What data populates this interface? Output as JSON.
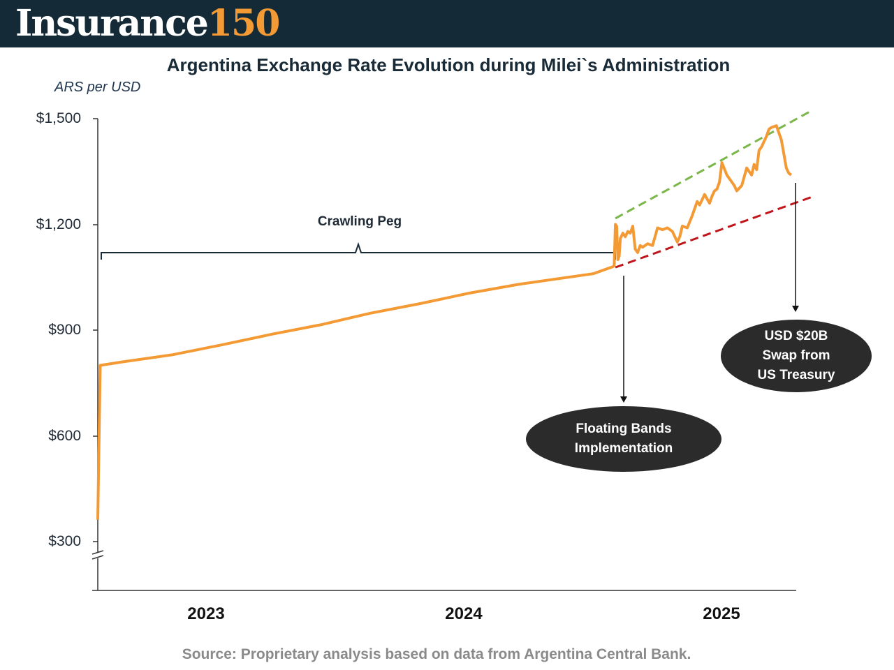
{
  "brand": {
    "word": "Insurance",
    "number": "150"
  },
  "chart_data": {
    "type": "line",
    "title": "Argentina Exchange Rate Evolution during Milei`s Administration",
    "ylabel": "ARS per USD",
    "xlabel": "",
    "ylim": [
      300,
      1500
    ],
    "y_ticks": [
      "$1,500",
      "$1,200",
      "$900",
      "$600",
      "$300"
    ],
    "y_tick_values": [
      1500,
      1200,
      900,
      600,
      300
    ],
    "x_ticks": [
      "2023",
      "2024",
      "2025"
    ],
    "x_range": [
      2022.95,
      2025.77
    ],
    "series": [
      {
        "name": "ARS per USD",
        "color": "#f39a35",
        "x": [
          2022.95,
          2022.96,
          2023.05,
          2023.25,
          2023.45,
          2023.65,
          2023.85,
          2024.05,
          2024.25,
          2024.45,
          2024.65,
          2024.95,
          2025.03,
          2025.035,
          2025.04,
          2025.045,
          2025.05,
          2025.055,
          2025.06,
          2025.07,
          2025.08,
          2025.09,
          2025.1,
          2025.11,
          2025.12,
          2025.13,
          2025.14,
          2025.15,
          2025.17,
          2025.19,
          2025.21,
          2025.23,
          2025.25,
          2025.27,
          2025.29,
          2025.3,
          2025.31,
          2025.33,
          2025.35,
          2025.37,
          2025.38,
          2025.4,
          2025.42,
          2025.43,
          2025.44,
          2025.45,
          2025.46,
          2025.47,
          2025.49,
          2025.51,
          2025.52,
          2025.53,
          2025.55,
          2025.57,
          2025.59,
          2025.6,
          2025.61,
          2025.62,
          2025.63,
          2025.65,
          2025.66,
          2025.67,
          2025.69,
          2025.71,
          2025.72,
          2025.73,
          2025.74,
          2025.75
        ],
        "values": [
          362,
          800,
          810,
          830,
          858,
          888,
          915,
          948,
          975,
          1005,
          1030,
          1060,
          1080,
          1083,
          1200,
          1195,
          1100,
          1110,
          1160,
          1175,
          1165,
          1180,
          1175,
          1195,
          1130,
          1120,
          1140,
          1135,
          1145,
          1140,
          1190,
          1185,
          1190,
          1180,
          1150,
          1165,
          1195,
          1190,
          1225,
          1265,
          1255,
          1285,
          1260,
          1280,
          1295,
          1300,
          1320,
          1375,
          1340,
          1320,
          1310,
          1295,
          1310,
          1360,
          1340,
          1370,
          1355,
          1410,
          1420,
          1450,
          1470,
          1475,
          1480,
          1440,
          1400,
          1360,
          1345,
          1340
        ]
      }
    ],
    "bands": [
      {
        "name": "upper band",
        "color": "#7ab648",
        "x": [
          2025.04,
          2025.83
        ],
        "values": [
          1217,
          1522
        ]
      },
      {
        "name": "lower band",
        "color": "#c0161b",
        "x": [
          2025.04,
          2025.83
        ],
        "values": [
          1078,
          1277
        ]
      }
    ],
    "annotations": [
      {
        "name": "crawling-peg",
        "text": "Crawling Peg",
        "x_start": 2022.97,
        "x_end": 2024.96
      },
      {
        "name": "floating-bands",
        "lines": [
          "Floating Bands",
          "Implementation"
        ],
        "x": 2025.04
      },
      {
        "name": "us-swap",
        "lines": [
          "USD $20B",
          "Swap from",
          "US Treasury"
        ],
        "x": 2025.74
      }
    ]
  },
  "source_note": "Source: Proprietary analysis based on data from Argentina Central Bank."
}
